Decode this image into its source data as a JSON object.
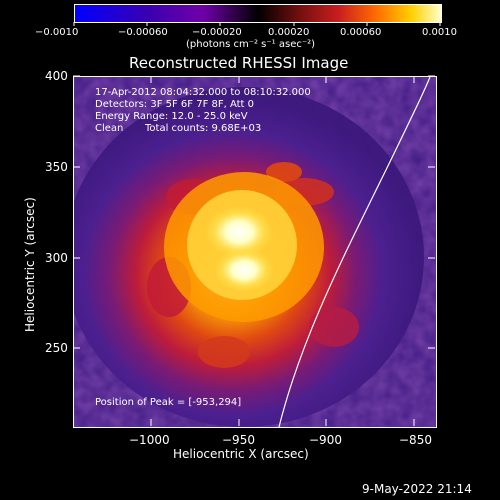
{
  "colorbar": {
    "ticks": [
      "−0.0010",
      "−0.00060",
      "−0.00020",
      "0.00020",
      "0.00060",
      "0.0010"
    ],
    "units": "(photons cm⁻² s⁻¹ asec⁻²)"
  },
  "title": "Reconstructed RHESSI Image",
  "info": {
    "time": "17-Apr-2012 08:04:32.000 to 08:10:32.000",
    "detectors": "Detectors: 3F 5F 6F 7F 8F, Att 0",
    "energy": "Energy Range: 12.0 - 25.0 keV",
    "clean": "Clean",
    "counts": "Total counts: 9.68E+03",
    "peak": "Position of Peak = [-953,294]"
  },
  "axes": {
    "xlabel": "Heliocentric X (arcsec)",
    "ylabel": "Heliocentric Y (arcsec)",
    "xticks": [
      "−1000",
      "−950",
      "−900",
      "−850"
    ],
    "yticks": [
      "400",
      "350",
      "300",
      "250"
    ]
  },
  "footer": {
    "date": "9-May-2022 21:14"
  },
  "colors": {
    "background": "#000000",
    "colormap": [
      "#0000ff",
      "#4b00a8",
      "#6a1f96",
      "#8b1a7a",
      "#c21b36",
      "#e64a0b",
      "#ff9a00",
      "#ffe04d",
      "#ffffcc"
    ]
  }
}
